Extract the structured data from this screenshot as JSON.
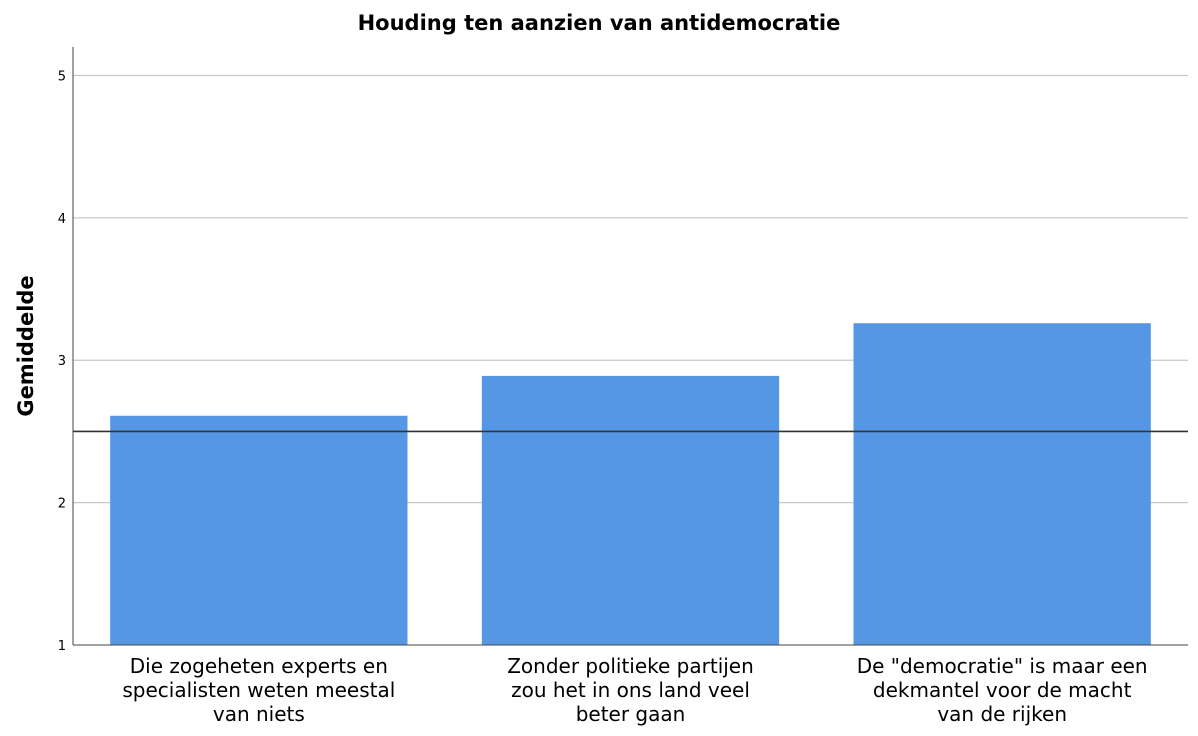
{
  "chart_data": {
    "type": "bar",
    "title": "Houding ten aanzien van antidemocratie",
    "xlabel": "",
    "ylabel": "Gemiddelde",
    "ylim": [
      1,
      5.2
    ],
    "yticks": [
      1,
      2,
      3,
      4,
      5
    ],
    "grid": true,
    "reference_line": 2.5,
    "bar_color": "#5597e4",
    "categories": [
      [
        "Die zogeheten experts en",
        "specialisten weten meestal",
        "van niets"
      ],
      [
        "Zonder politieke partijen",
        "zou het in ons land veel",
        "beter gaan"
      ],
      [
        "De \"democratie\" is maar een",
        "dekmantel voor de macht",
        "van de rijken"
      ]
    ],
    "values": [
      2.61,
      2.89,
      3.26
    ]
  }
}
